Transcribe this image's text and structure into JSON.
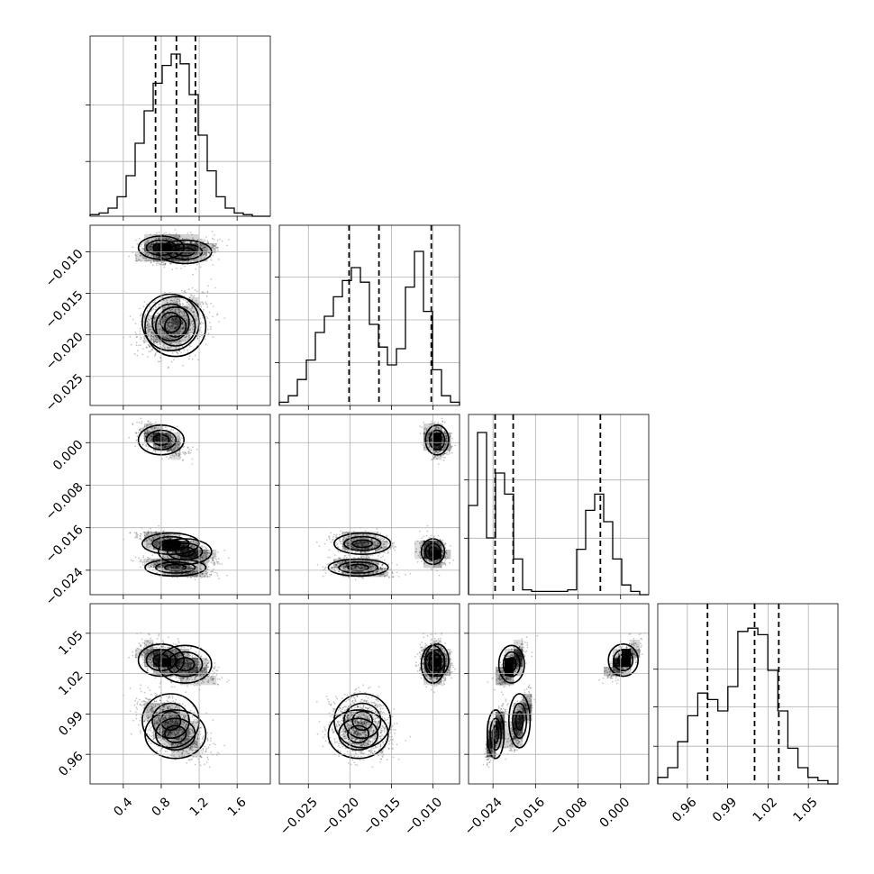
{
  "chart_data": {
    "type": "corner",
    "parameters": [
      {
        "range": [
          0.05,
          1.95
        ],
        "ticks": [
          0.4,
          0.8,
          1.2,
          1.6
        ],
        "tick_labels": [
          "0.4",
          "0.8",
          "1.2",
          "1.6"
        ],
        "quantiles": [
          0.74,
          0.96,
          1.16
        ]
      },
      {
        "range": [
          -0.0285,
          -0.0068
        ],
        "ticks": [
          -0.025,
          -0.02,
          -0.015,
          -0.01
        ],
        "tick_labels": [
          "−0.025",
          "−0.020",
          "−0.015",
          "−0.010"
        ],
        "quantiles": [
          -0.0201,
          -0.0165,
          -0.0102
        ],
        "quantiles_note": ""
      },
      {
        "range": [
          -0.0286,
          0.0053
        ],
        "ticks": [
          -0.024,
          -0.016,
          -0.008,
          0.0
        ],
        "tick_labels": [
          "−0.024",
          "−0.016",
          "−0.008",
          "0.000"
        ],
        "quantiles": [
          -0.0236,
          -0.0202,
          -0.0038
        ]
      },
      {
        "range": [
          0.938,
          1.072
        ],
        "ticks": [
          0.96,
          0.99,
          1.02,
          1.05
        ],
        "tick_labels": [
          "0.96",
          "0.99",
          "1.02",
          "1.05"
        ],
        "quantiles": [
          0.975,
          1.01,
          1.028
        ]
      }
    ],
    "histograms": [
      [
        0.01,
        0.02,
        0.05,
        0.12,
        0.25,
        0.45,
        0.65,
        0.82,
        0.93,
        1.0,
        0.94,
        0.75,
        0.5,
        0.28,
        0.12,
        0.05,
        0.02,
        0.01,
        0.0,
        0.0
      ],
      [
        0.02,
        0.06,
        0.16,
        0.28,
        0.45,
        0.55,
        0.67,
        0.77,
        0.85,
        0.76,
        0.5,
        0.36,
        0.25,
        0.35,
        0.73,
        0.95,
        0.58,
        0.22,
        0.06,
        0.02
      ],
      [
        0.55,
        1.0,
        0.35,
        0.75,
        0.62,
        0.22,
        0.03,
        0.02,
        0.02,
        0.02,
        0.02,
        0.03,
        0.28,
        0.52,
        0.62,
        0.45,
        0.22,
        0.06,
        0.02,
        0.0
      ],
      [
        0.04,
        0.1,
        0.26,
        0.42,
        0.56,
        0.52,
        0.45,
        0.6,
        0.94,
        0.96,
        0.92,
        0.7,
        0.45,
        0.22,
        0.1,
        0.04,
        0.02,
        0.0
      ]
    ],
    "hist_ticks": [
      [
        0.32,
        0.65
      ],
      [
        0.25,
        0.5,
        0.75
      ],
      [
        0.33,
        0.67
      ],
      [
        0.22,
        0.45,
        0.67
      ]
    ],
    "clusters": [
      {
        "means": [
          0.8,
          -0.0095,
          0.0005,
          1.03
        ],
        "sds": [
          0.12,
          0.0007,
          0.0014,
          0.006
        ],
        "weight": 0.26
      },
      {
        "means": [
          1.05,
          -0.01,
          -0.0205,
          1.027
        ],
        "sds": [
          0.14,
          0.0007,
          0.0012,
          0.007
        ],
        "weight": 0.28
      },
      {
        "means": [
          0.9,
          -0.0185,
          -0.019,
          0.985
        ],
        "sds": [
          0.15,
          0.0017,
          0.001,
          0.01
        ],
        "weight": 0.24
      },
      {
        "means": [
          0.95,
          -0.019,
          -0.0235,
          0.975
        ],
        "sds": [
          0.16,
          0.0018,
          0.0008,
          0.009
        ],
        "weight": 0.22
      }
    ],
    "grid_on": true
  }
}
